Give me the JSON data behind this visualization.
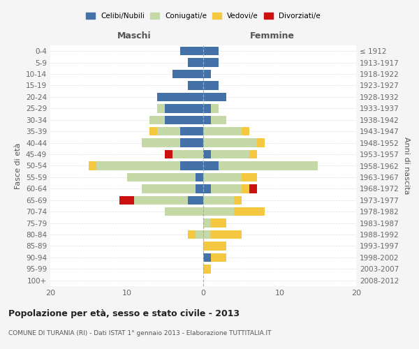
{
  "age_groups": [
    "0-4",
    "5-9",
    "10-14",
    "15-19",
    "20-24",
    "25-29",
    "30-34",
    "35-39",
    "40-44",
    "45-49",
    "50-54",
    "55-59",
    "60-64",
    "65-69",
    "70-74",
    "75-79",
    "80-84",
    "85-89",
    "90-94",
    "95-99",
    "100+"
  ],
  "birth_years": [
    "2008-2012",
    "2003-2007",
    "1998-2002",
    "1993-1997",
    "1988-1992",
    "1983-1987",
    "1978-1982",
    "1973-1977",
    "1968-1972",
    "1963-1967",
    "1958-1962",
    "1953-1957",
    "1948-1952",
    "1943-1947",
    "1938-1942",
    "1933-1937",
    "1928-1932",
    "1923-1927",
    "1918-1922",
    "1913-1917",
    "≤ 1912"
  ],
  "maschi": {
    "celibi": [
      3,
      2,
      4,
      2,
      6,
      5,
      5,
      3,
      3,
      0,
      3,
      1,
      1,
      2,
      0,
      0,
      0,
      0,
      0,
      0,
      0
    ],
    "coniugati": [
      0,
      0,
      0,
      0,
      0,
      1,
      2,
      3,
      5,
      4,
      11,
      9,
      7,
      7,
      5,
      0,
      1,
      0,
      0,
      0,
      0
    ],
    "vedovi": [
      0,
      0,
      0,
      0,
      0,
      0,
      0,
      1,
      0,
      0,
      1,
      0,
      0,
      0,
      0,
      0,
      1,
      0,
      0,
      0,
      0
    ],
    "divorziati": [
      0,
      0,
      0,
      0,
      0,
      0,
      0,
      0,
      0,
      1,
      0,
      0,
      0,
      2,
      0,
      0,
      0,
      0,
      0,
      0,
      0
    ]
  },
  "femmine": {
    "nubili": [
      2,
      2,
      1,
      2,
      3,
      1,
      1,
      0,
      0,
      1,
      2,
      0,
      1,
      0,
      0,
      0,
      0,
      0,
      1,
      0,
      0
    ],
    "coniugate": [
      0,
      0,
      0,
      0,
      0,
      1,
      2,
      5,
      7,
      5,
      13,
      5,
      4,
      4,
      4,
      1,
      1,
      0,
      0,
      0,
      0
    ],
    "vedove": [
      0,
      0,
      0,
      0,
      0,
      0,
      0,
      1,
      1,
      1,
      0,
      2,
      1,
      1,
      4,
      2,
      4,
      3,
      2,
      1,
      0
    ],
    "divorziate": [
      0,
      0,
      0,
      0,
      0,
      0,
      0,
      0,
      0,
      0,
      0,
      0,
      1,
      0,
      0,
      0,
      0,
      0,
      0,
      0,
      0
    ]
  },
  "colors": {
    "celibi_nubili": "#4472a8",
    "coniugati": "#c5d9a8",
    "vedovi": "#f5c842",
    "divorziati": "#cc1111"
  },
  "xlim": 20,
  "title": "Popolazione per età, sesso e stato civile - 2013",
  "subtitle": "COMUNE DI TURANIA (RI) - Dati ISTAT 1° gennaio 2013 - Elaborazione TUTTITALIA.IT",
  "ylabel_left": "Fasce di età",
  "ylabel_right": "Anni di nascita",
  "xlabel_left": "Maschi",
  "xlabel_right": "Femmine",
  "background_color": "#f5f5f5",
  "plot_background": "#ffffff"
}
